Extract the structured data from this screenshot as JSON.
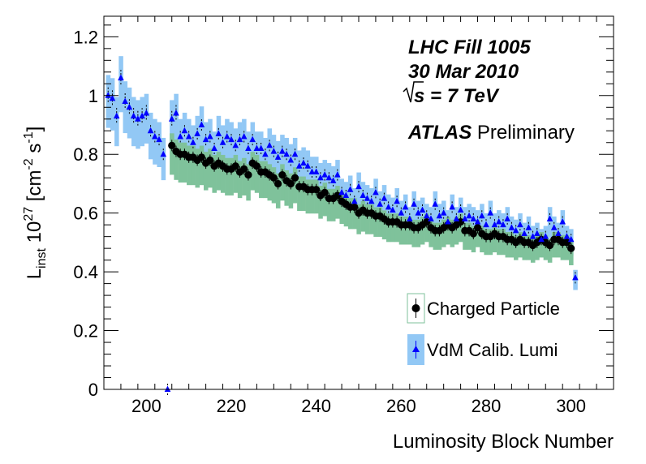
{
  "chart_data": {
    "type": "scatter",
    "xlabel": "Luminosity Block Number",
    "ylabel_main": "L",
    "ylabel_sub": "inst",
    "ylabel_factor": "10",
    "ylabel_exp": "27",
    "ylabel_units": "[cm",
    "ylabel_units_exp1": "-2",
    "ylabel_units_mid": "s",
    "ylabel_units_exp2": "-1",
    "ylabel_units_end": "]",
    "xlim": [
      190,
      310
    ],
    "ylim": [
      0,
      1.27
    ],
    "xticks": [
      200,
      220,
      240,
      260,
      280,
      300
    ],
    "xtick_labels": [
      "200",
      "220",
      "240",
      "260",
      "280",
      "300"
    ],
    "yticks": [
      0,
      0.2,
      0.4,
      0.6,
      0.8,
      1,
      1.2
    ],
    "ytick_labels": [
      "0",
      "0.2",
      "0.4",
      "0.6",
      "0.8",
      "1",
      "1.2"
    ],
    "annotation": {
      "line1": "LHC Fill 1005",
      "line2": "30 Mar 2010",
      "line3_sqrt": "s",
      "line3_rest": " = 7 TeV",
      "atlas": "ATLAS",
      "preliminary": "Preliminary"
    },
    "legend": [
      {
        "label": "Charged Particle",
        "marker": "circle",
        "color": "#000000",
        "band_color": "#7fc29b"
      },
      {
        "label": "VdM Calib. Lumi",
        "marker": "triangle",
        "color": "#0000ff",
        "band_color": "#92c8f5"
      }
    ],
    "colors": {
      "charged_band": "#7fc29b",
      "vdm_band": "#92c8f5",
      "charged_marker": "#000000",
      "vdm_marker": "#0000ff"
    },
    "series": [
      {
        "name": "VdM Calib. Lumi",
        "band_rel_up": 0.07,
        "band_rel_down": 0.11,
        "x": [
          191,
          192,
          193,
          194,
          195,
          196,
          197,
          198,
          199,
          200,
          201,
          202,
          203,
          204,
          205,
          206,
          207,
          208,
          209,
          210,
          211,
          212,
          213,
          214,
          215,
          216,
          217,
          218,
          219,
          220,
          221,
          222,
          223,
          224,
          225,
          226,
          227,
          228,
          229,
          230,
          231,
          232,
          233,
          234,
          235,
          236,
          237,
          238,
          239,
          240,
          241,
          242,
          243,
          244,
          245,
          246,
          247,
          248,
          249,
          250,
          251,
          252,
          253,
          254,
          255,
          256,
          257,
          258,
          259,
          260,
          261,
          262,
          263,
          264,
          265,
          266,
          267,
          268,
          269,
          270,
          271,
          272,
          273,
          274,
          275,
          276,
          277,
          278,
          279,
          280,
          281,
          282,
          283,
          284,
          285,
          286,
          287,
          288,
          289,
          290,
          291,
          292,
          293,
          294,
          295,
          296,
          297,
          298,
          299,
          300,
          301
        ],
        "y": [
          1.0,
          0.99,
          0.93,
          1.06,
          0.98,
          0.96,
          0.93,
          0.92,
          0.93,
          0.94,
          0.88,
          0.86,
          0.85,
          0.8,
          0.0,
          0.92,
          0.94,
          0.86,
          0.88,
          0.86,
          0.84,
          0.87,
          0.9,
          0.85,
          0.86,
          0.82,
          0.87,
          0.84,
          0.86,
          0.85,
          0.83,
          0.85,
          0.86,
          0.82,
          0.85,
          0.82,
          0.82,
          0.8,
          0.83,
          0.81,
          0.79,
          0.81,
          0.8,
          0.78,
          0.8,
          0.76,
          0.77,
          0.76,
          0.74,
          0.74,
          0.72,
          0.73,
          0.72,
          0.71,
          0.73,
          0.67,
          0.66,
          0.68,
          0.64,
          0.69,
          0.66,
          0.65,
          0.64,
          0.67,
          0.63,
          0.65,
          0.62,
          0.61,
          0.64,
          0.6,
          0.62,
          0.58,
          0.63,
          0.6,
          0.61,
          0.59,
          0.58,
          0.63,
          0.59,
          0.6,
          0.57,
          0.62,
          0.58,
          0.61,
          0.58,
          0.59,
          0.58,
          0.57,
          0.59,
          0.56,
          0.6,
          0.56,
          0.57,
          0.56,
          0.58,
          0.55,
          0.54,
          0.56,
          0.53,
          0.55,
          0.52,
          0.53,
          0.51,
          0.52,
          0.58,
          0.55,
          0.53,
          0.57,
          0.52,
          0.51,
          0.38
        ]
      },
      {
        "name": "Charged Particle",
        "band_rel_up": 0.05,
        "band_rel_down": 0.12,
        "x": [
          206,
          207,
          208,
          209,
          210,
          211,
          212,
          213,
          214,
          215,
          216,
          217,
          218,
          219,
          220,
          221,
          222,
          223,
          224,
          225,
          226,
          227,
          228,
          229,
          230,
          231,
          232,
          233,
          234,
          235,
          236,
          237,
          238,
          239,
          240,
          241,
          242,
          243,
          244,
          245,
          246,
          247,
          248,
          249,
          250,
          251,
          252,
          253,
          254,
          255,
          256,
          257,
          258,
          259,
          260,
          261,
          262,
          263,
          264,
          265,
          266,
          267,
          268,
          269,
          270,
          271,
          272,
          273,
          274,
          275,
          276,
          277,
          278,
          279,
          280,
          281,
          282,
          283,
          284,
          285,
          286,
          287,
          288,
          289,
          290,
          291,
          292,
          293,
          294,
          295,
          296,
          297,
          298,
          299,
          300
        ],
        "y": [
          0.83,
          0.81,
          0.8,
          0.8,
          0.79,
          0.79,
          0.78,
          0.79,
          0.77,
          0.78,
          0.76,
          0.77,
          0.76,
          0.75,
          0.75,
          0.76,
          0.74,
          0.75,
          0.73,
          0.77,
          0.76,
          0.74,
          0.74,
          0.73,
          0.72,
          0.7,
          0.73,
          0.71,
          0.7,
          0.72,
          0.69,
          0.69,
          0.68,
          0.68,
          0.68,
          0.66,
          0.67,
          0.65,
          0.65,
          0.66,
          0.64,
          0.63,
          0.62,
          0.62,
          0.6,
          0.61,
          0.6,
          0.6,
          0.59,
          0.59,
          0.58,
          0.57,
          0.57,
          0.57,
          0.56,
          0.56,
          0.56,
          0.55,
          0.55,
          0.56,
          0.57,
          0.55,
          0.54,
          0.54,
          0.55,
          0.56,
          0.55,
          0.56,
          0.57,
          0.54,
          0.54,
          0.53,
          0.55,
          0.53,
          0.52,
          0.52,
          0.53,
          0.52,
          0.52,
          0.51,
          0.51,
          0.5,
          0.51,
          0.5,
          0.5,
          0.49,
          0.5,
          0.51,
          0.5,
          0.49,
          0.51,
          0.51,
          0.5,
          0.5,
          0.48
        ]
      }
    ]
  }
}
